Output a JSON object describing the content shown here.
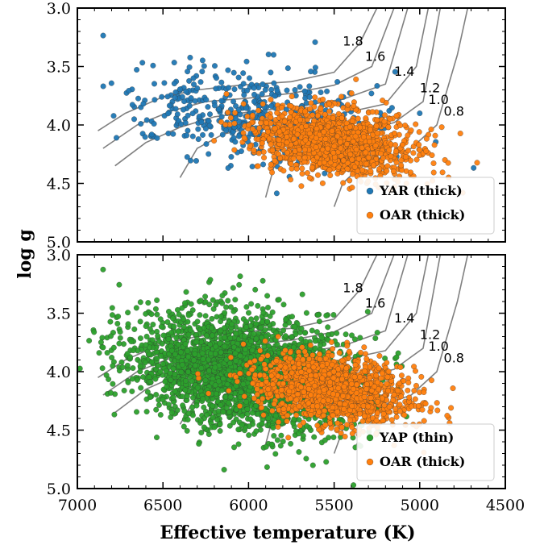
{
  "chart_data": [
    {
      "type": "scatter",
      "panel": "top",
      "title": "",
      "xlabel": "Effective temperature (K)",
      "ylabel": "log g",
      "xlim": [
        7000,
        4500
      ],
      "ylim": [
        5.0,
        3.0
      ],
      "x_ticks": [
        "7000",
        "6500",
        "6000",
        "5500",
        "5000",
        "4500"
      ],
      "y_ticks": [
        "3.0",
        "3.5",
        "4.0",
        "4.5",
        "5.0"
      ],
      "legend_position": "bottom-right",
      "series": [
        {
          "name": "YAR (thick)",
          "color": "#1f77b4",
          "cluster": {
            "teff_range": [
              6850,
              5150
            ],
            "logg_range": [
              3.4,
              4.4
            ],
            "count": 450
          }
        },
        {
          "name": "OAR (thick)",
          "color": "#ff7f0e",
          "cluster": {
            "teff_range": [
              6000,
              5000
            ],
            "logg_range": [
              3.8,
              4.5
            ],
            "count": 1400
          }
        }
      ],
      "isochrone_labels": [
        "1.8",
        "1.6",
        "1.4",
        "1.2",
        "1.0",
        "0.8"
      ]
    },
    {
      "type": "scatter",
      "panel": "bottom",
      "title": "",
      "xlabel": "Effective temperature (K)",
      "ylabel": "log g",
      "xlim": [
        7000,
        4500
      ],
      "ylim": [
        5.0,
        3.0
      ],
      "x_ticks": [
        "7000",
        "6500",
        "6000",
        "5500",
        "5000",
        "4500"
      ],
      "y_ticks": [
        "3.0",
        "3.5",
        "4.0",
        "4.5",
        "5.0"
      ],
      "legend_position": "bottom-right",
      "series": [
        {
          "name": "YAP (thin)",
          "color": "#2ca02c",
          "cluster": {
            "teff_range": [
              6750,
              5300
            ],
            "logg_range": [
              3.4,
              4.6
            ],
            "count": 2600
          }
        },
        {
          "name": "OAR (thick)",
          "color": "#ff7f0e",
          "cluster": {
            "teff_range": [
              6000,
              5000
            ],
            "logg_range": [
              3.8,
              4.5
            ],
            "count": 1400
          }
        }
      ],
      "isochrone_labels": [
        "1.8",
        "1.6",
        "1.4",
        "1.2",
        "1.0",
        "0.8"
      ]
    }
  ],
  "colors": {
    "axis": "#000000",
    "track": "#808080"
  }
}
